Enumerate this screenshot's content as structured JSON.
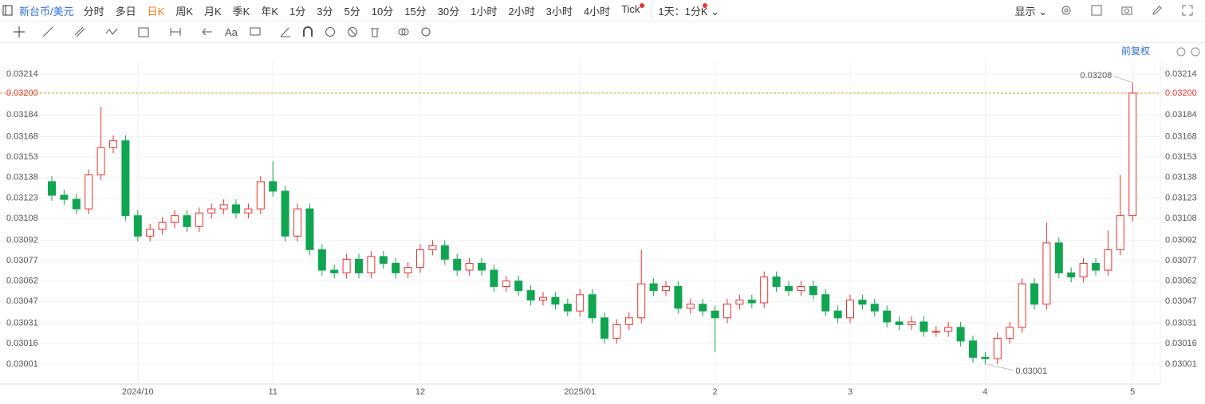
{
  "toolbar": {
    "symbol": "新台币/美元",
    "tabs": [
      "分时",
      "多日",
      "日K",
      "周K",
      "月K",
      "季K",
      "年K",
      "1分",
      "3分",
      "5分",
      "10分",
      "15分",
      "30分",
      "1小时",
      "2小时",
      "3小时",
      "4小时",
      "Tick"
    ],
    "active": 2,
    "interval": "1天：1分K",
    "display": "显示",
    "font_tool": "Aa"
  },
  "chart_data": {
    "type": "candlestick",
    "adjust": "前复权",
    "categories": [
      null,
      null,
      null,
      null,
      null,
      null,
      null,
      "2024/10",
      null,
      null,
      null,
      null,
      null,
      null,
      null,
      null,
      null,
      null,
      "11",
      null,
      null,
      null,
      null,
      null,
      null,
      null,
      null,
      null,
      null,
      null,
      "12",
      null,
      null,
      null,
      null,
      null,
      null,
      null,
      null,
      null,
      null,
      null,
      null,
      "2025/01",
      null,
      null,
      null,
      null,
      null,
      null,
      null,
      null,
      null,
      null,
      "2",
      null,
      null,
      null,
      null,
      null,
      null,
      null,
      null,
      null,
      null,
      "3",
      null,
      null,
      null,
      null,
      null,
      null,
      null,
      null,
      null,
      null,
      "4",
      null,
      null,
      null,
      null,
      null,
      null,
      null,
      null,
      null,
      null,
      null,
      "5"
    ],
    "open": [
      0.03135,
      0.03125,
      0.03122,
      0.03115,
      0.0314,
      0.0316,
      0.03165,
      0.0311,
      0.03095,
      0.031,
      0.03105,
      0.0311,
      0.03102,
      0.03112,
      0.03115,
      0.03118,
      0.03112,
      0.03115,
      0.03135,
      0.03128,
      0.03095,
      0.03115,
      0.03085,
      0.0307,
      0.03068,
      0.03078,
      0.03068,
      0.0308,
      0.03075,
      0.03068,
      0.03072,
      0.03085,
      0.03088,
      0.03078,
      0.0307,
      0.03075,
      0.0307,
      0.03058,
      0.03062,
      0.03055,
      0.03048,
      0.0305,
      0.03045,
      0.0304,
      0.03052,
      0.03035,
      0.0302,
      0.0303,
      0.03035,
      0.0306,
      0.03055,
      0.03058,
      0.03042,
      0.03045,
      0.0304,
      0.03035,
      0.03045,
      0.03048,
      0.03046,
      0.03065,
      0.03058,
      0.03055,
      0.03058,
      0.03052,
      0.0304,
      0.03035,
      0.03048,
      0.03045,
      0.0304,
      0.03032,
      0.0303,
      0.03032,
      0.03025,
      0.03025,
      0.03028,
      0.03018,
      0.03006,
      0.03005,
      0.0302,
      0.03028,
      0.0306,
      0.03045,
      0.0309,
      0.03068,
      0.03065,
      0.03075,
      0.0307,
      0.03085,
      0.0311
    ],
    "high": [
      0.03139,
      0.03129,
      0.03126,
      0.03144,
      0.0319,
      0.03169,
      0.03169,
      0.03114,
      0.03104,
      0.03109,
      0.03114,
      0.03114,
      0.03116,
      0.03119,
      0.03122,
      0.03122,
      0.03119,
      0.03139,
      0.0315,
      0.03132,
      0.03119,
      0.03119,
      0.03089,
      0.03074,
      0.03082,
      0.03082,
      0.03084,
      0.03084,
      0.03079,
      0.03076,
      0.03089,
      0.03092,
      0.03092,
      0.03082,
      0.03079,
      0.03079,
      0.03074,
      0.03066,
      0.03066,
      0.03059,
      0.03054,
      0.03054,
      0.03049,
      0.03056,
      0.03056,
      0.03039,
      0.03034,
      0.03039,
      0.03085,
      0.03064,
      0.03062,
      0.03062,
      0.03049,
      0.03049,
      0.03044,
      0.03049,
      0.03052,
      0.03052,
      0.03069,
      0.03069,
      0.03062,
      0.03062,
      0.03062,
      0.03056,
      0.03044,
      0.03052,
      0.03052,
      0.03049,
      0.03044,
      0.03036,
      0.03036,
      0.03036,
      0.03029,
      0.03032,
      0.03032,
      0.03022,
      0.0301,
      0.03024,
      0.03032,
      0.03064,
      0.03064,
      0.03105,
      0.03094,
      0.03072,
      0.03079,
      0.03079,
      0.03099,
      0.0314,
      0.03208
    ],
    "low": [
      0.03121,
      0.03118,
      0.03111,
      0.03111,
      0.03136,
      0.03156,
      0.03106,
      0.03091,
      0.03091,
      0.03096,
      0.03101,
      0.03098,
      0.03098,
      0.03108,
      0.03111,
      0.03108,
      0.03108,
      0.03111,
      0.03124,
      0.03091,
      0.03091,
      0.03081,
      0.03066,
      0.03064,
      0.03064,
      0.03064,
      0.03064,
      0.03071,
      0.03064,
      0.03064,
      0.03068,
      0.03081,
      0.03074,
      0.03066,
      0.03066,
      0.03066,
      0.03054,
      0.03054,
      0.03051,
      0.03044,
      0.03044,
      0.03041,
      0.03036,
      0.03036,
      0.03031,
      0.03016,
      0.03016,
      0.03026,
      0.03031,
      0.03051,
      0.03051,
      0.03038,
      0.03038,
      0.03036,
      0.0301,
      0.03031,
      0.03041,
      0.03042,
      0.03042,
      0.03054,
      0.03051,
      0.03051,
      0.03048,
      0.03036,
      0.03031,
      0.03031,
      0.03041,
      0.03036,
      0.03028,
      0.03026,
      0.03026,
      0.03021,
      0.03021,
      0.03021,
      0.03014,
      0.03002,
      0.03001,
      0.03001,
      0.03016,
      0.03024,
      0.03041,
      0.03041,
      0.03064,
      0.03061,
      0.03061,
      0.03066,
      0.03066,
      0.03081,
      0.03106
    ],
    "close": [
      0.03125,
      0.03122,
      0.03115,
      0.0314,
      0.0316,
      0.03165,
      0.0311,
      0.03095,
      0.031,
      0.03105,
      0.0311,
      0.03102,
      0.03112,
      0.03115,
      0.03118,
      0.03112,
      0.03115,
      0.03135,
      0.03128,
      0.03095,
      0.03115,
      0.03085,
      0.0307,
      0.03068,
      0.03078,
      0.03068,
      0.0308,
      0.03075,
      0.03068,
      0.03072,
      0.03085,
      0.03088,
      0.03078,
      0.0307,
      0.03075,
      0.0307,
      0.03058,
      0.03062,
      0.03055,
      0.03048,
      0.0305,
      0.03045,
      0.0304,
      0.03052,
      0.03035,
      0.0302,
      0.0303,
      0.03035,
      0.0306,
      0.03055,
      0.03058,
      0.03042,
      0.03045,
      0.0304,
      0.03035,
      0.03045,
      0.03048,
      0.03046,
      0.03065,
      0.03058,
      0.03055,
      0.03058,
      0.03052,
      0.0304,
      0.03035,
      0.03048,
      0.03045,
      0.0304,
      0.03032,
      0.0303,
      0.03032,
      0.03025,
      0.03025,
      0.03028,
      0.03018,
      0.03006,
      0.03005,
      0.0302,
      0.03028,
      0.0306,
      0.03045,
      0.0309,
      0.03068,
      0.03065,
      0.03075,
      0.0307,
      0.03085,
      0.0311,
      0.032
    ],
    "up_color": "#e5332e",
    "down_color": "#10a550",
    "current_price": {
      "value": 0.032,
      "label": "0.03200"
    },
    "current_color": "#e5332e",
    "ylim": [
      0.029875,
      0.032245
    ],
    "yticks": [
      0.03001,
      0.03016,
      0.03031,
      0.03047,
      0.03062,
      0.03077,
      0.03092,
      0.03108,
      0.03123,
      0.03138,
      0.03153,
      0.03168,
      0.03184,
      {
        "value": 0.032,
        "label": "0.03200"
      },
      0.03214
    ],
    "grid": true
  }
}
